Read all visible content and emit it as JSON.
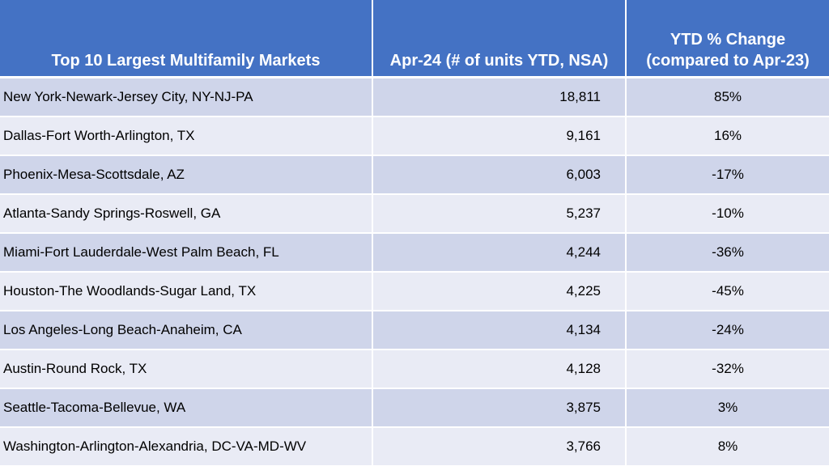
{
  "table": {
    "headers": {
      "market": "Top 10 Largest Multifamily Markets",
      "units": "Apr-24 (# of units YTD, NSA)",
      "change_line1": "YTD % Change",
      "change_line2": "(compared to Apr-23)"
    },
    "rows": [
      {
        "market": "New York-Newark-Jersey City, NY-NJ-PA",
        "units": "18,811",
        "change": "85%"
      },
      {
        "market": "Dallas-Fort Worth-Arlington, TX",
        "units": "9,161",
        "change": "16%"
      },
      {
        "market": "Phoenix-Mesa-Scottsdale, AZ",
        "units": "6,003",
        "change": "-17%"
      },
      {
        "market": "Atlanta-Sandy Springs-Roswell, GA",
        "units": "5,237",
        "change": "-10%"
      },
      {
        "market": "Miami-Fort Lauderdale-West Palm Beach, FL",
        "units": "4,244",
        "change": "-36%"
      },
      {
        "market": "Houston-The Woodlands-Sugar Land, TX",
        "units": "4,225",
        "change": "-45%"
      },
      {
        "market": "Los Angeles-Long Beach-Anaheim, CA",
        "units": "4,134",
        "change": "-24%"
      },
      {
        "market": "Austin-Round Rock, TX",
        "units": "4,128",
        "change": "-32%"
      },
      {
        "market": "Seattle-Tacoma-Bellevue, WA",
        "units": "3,875",
        "change": "3%"
      },
      {
        "market": "Washington-Arlington-Alexandria, DC-VA-MD-WV",
        "units": "3,766",
        "change": "8%"
      }
    ],
    "colors": {
      "header_bg": "#4472c4",
      "row_odd": "#cfd5ea",
      "row_even": "#e9ebf5"
    }
  }
}
